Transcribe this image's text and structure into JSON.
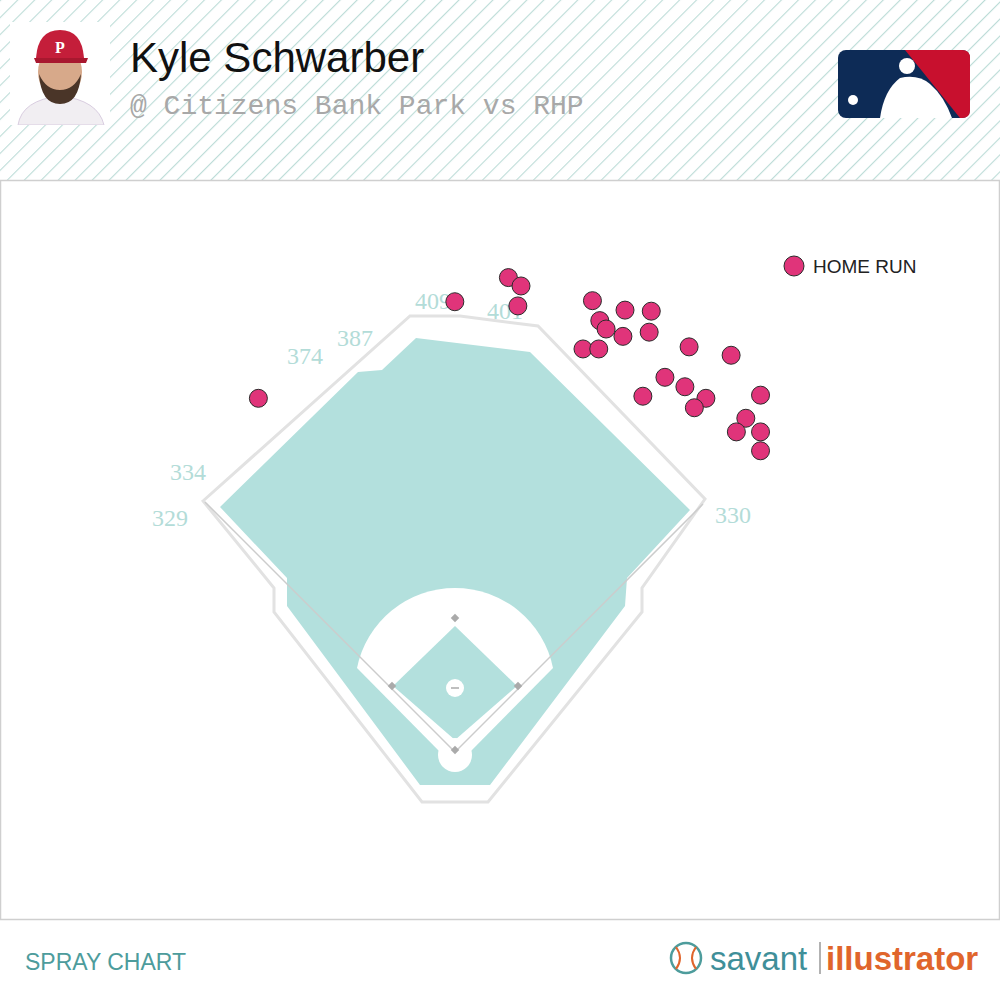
{
  "chart_data": {
    "type": "scatter",
    "title": "Kyle Schwarber",
    "subtitle": "@ Citizens Bank Park vs RHP",
    "x": [
      0,
      51,
      63,
      60,
      131,
      162,
      187,
      138,
      144,
      160,
      185,
      122,
      137,
      223,
      263,
      200,
      219,
      179,
      239,
      228,
      291,
      277,
      268,
      291,
      291,
      -187
    ],
    "series": [
      {
        "name": "HOME RUN",
        "color": "#e0347a",
        "marker": "circle",
        "values": [
          429,
          452,
          444,
          425,
          430,
          421,
          420,
          411,
          403,
          396,
          400,
          384,
          384,
          386,
          378,
          357,
          348,
          339,
          337,
          328,
          340,
          318,
          305,
          305,
          287,
          337
        ]
      }
    ],
    "xlim": [
      -432,
      518
    ],
    "ylim": [
      -159,
      544
    ],
    "tick_labels": false,
    "grid": false,
    "legend": "top-right",
    "fence_distances": [
      329,
      334,
      374,
      387,
      409,
      401,
      330
    ]
  },
  "footer": {
    "label": "SPRAY CHART",
    "brand_left": "savant",
    "brand_right": "illustrator"
  }
}
